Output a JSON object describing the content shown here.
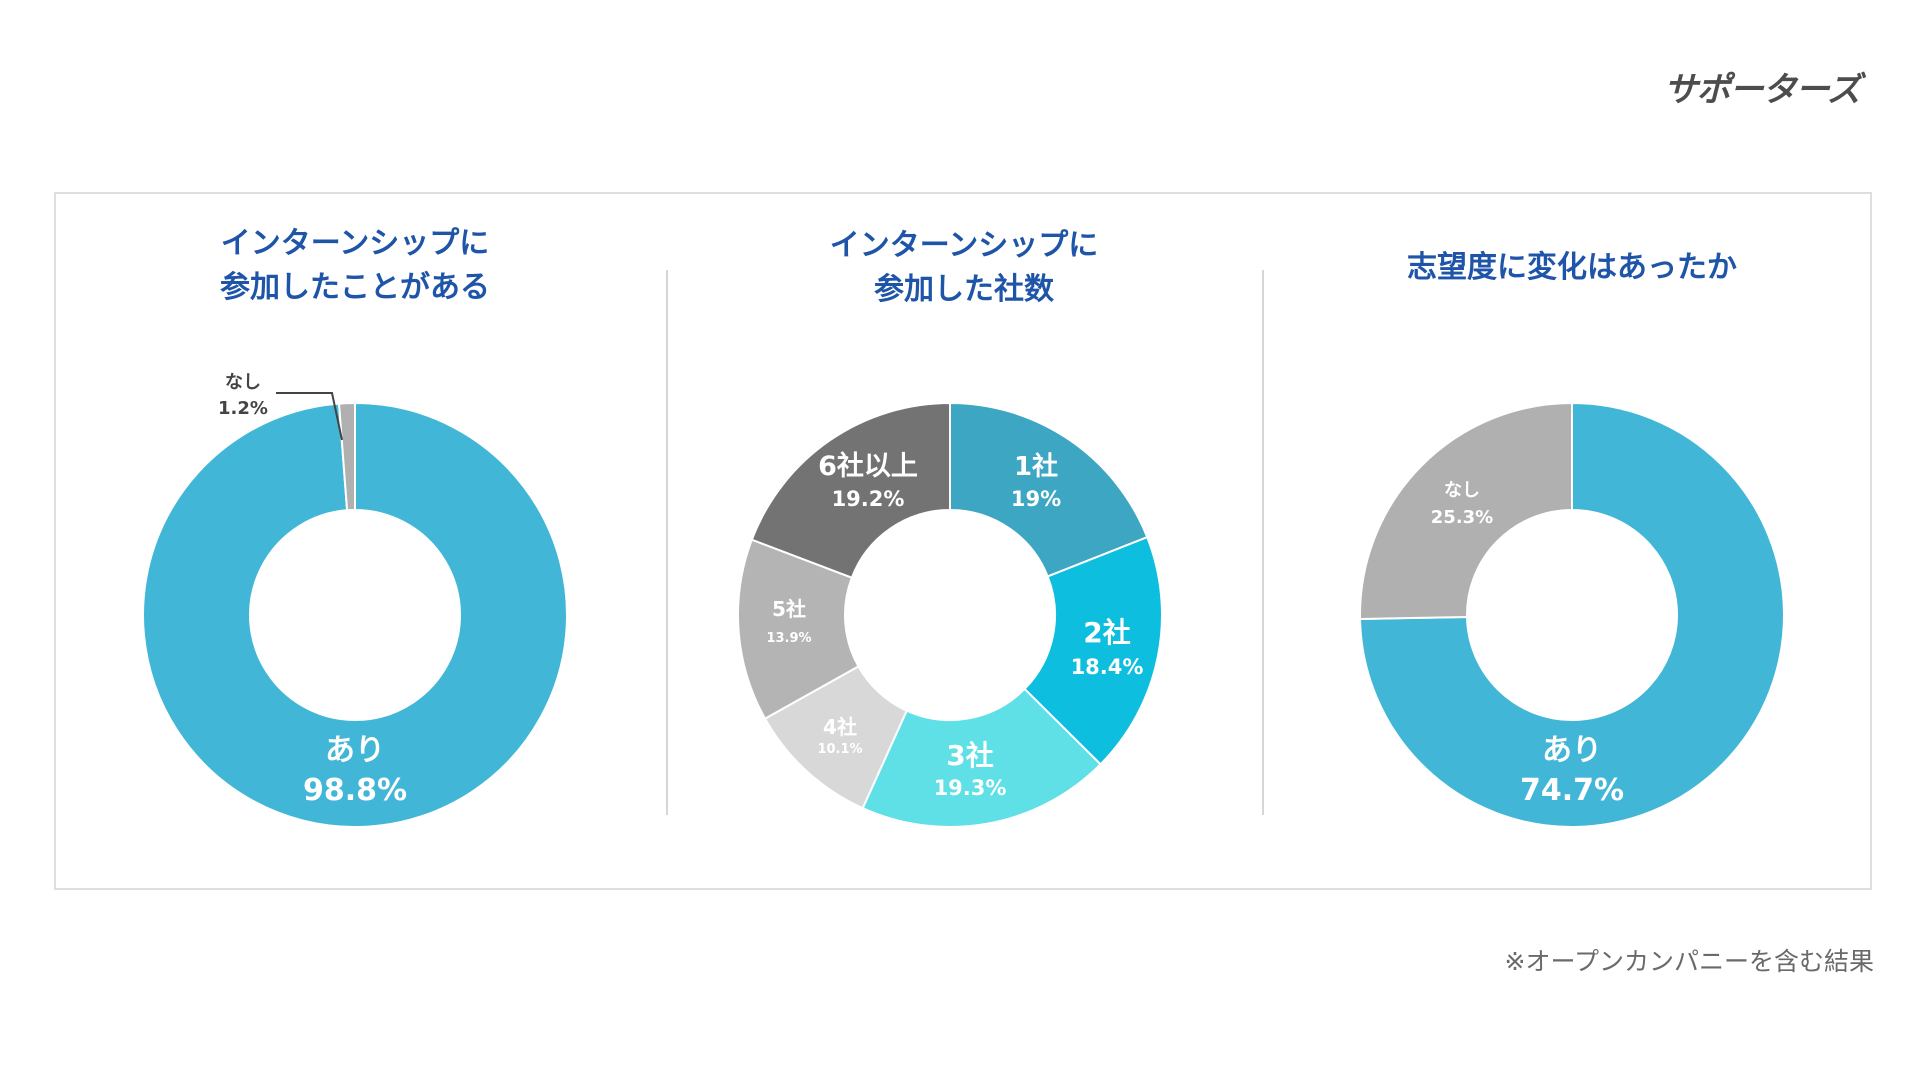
{
  "brand": {
    "logo_text": "サポーターズ"
  },
  "footnote": "※オープンカンパニーを含む結果",
  "chart_data": [
    {
      "type": "pie",
      "title_lines": [
        "インターンシップに",
        "参加したことがある"
      ],
      "slices": [
        {
          "label": "あり",
          "value": 98.8,
          "display": "98.8%",
          "color": "#42b6d6"
        },
        {
          "label": "なし",
          "value": 1.2,
          "display": "1.2%",
          "color": "#b0b0b0"
        }
      ]
    },
    {
      "type": "pie",
      "title_lines": [
        "インターンシップに",
        "参加した社数"
      ],
      "slices": [
        {
          "label": "1社",
          "value": 19,
          "display": "19%",
          "color": "#3da6c2"
        },
        {
          "label": "2社",
          "value": 18.4,
          "display": "18.4%",
          "color": "#0ebedf"
        },
        {
          "label": "3社",
          "value": 19.3,
          "display": "19.3%",
          "color": "#5fdfe6"
        },
        {
          "label": "4社",
          "value": 10.1,
          "display": "10.1%",
          "color": "#d8d8d8"
        },
        {
          "label": "5社",
          "value": 13.9,
          "display": "13.9%",
          "color": "#b4b4b4"
        },
        {
          "label": "6社以上",
          "value": 19.2,
          "display": "19.2%",
          "color": "#737373"
        }
      ]
    },
    {
      "type": "pie",
      "title_lines": [
        "志望度に変化はあったか"
      ],
      "slices": [
        {
          "label": "あり",
          "value": 74.7,
          "display": "74.7%",
          "color": "#42b6d6"
        },
        {
          "label": "なし",
          "value": 25.3,
          "display": "25.3%",
          "color": "#b0b0b0"
        }
      ]
    }
  ]
}
